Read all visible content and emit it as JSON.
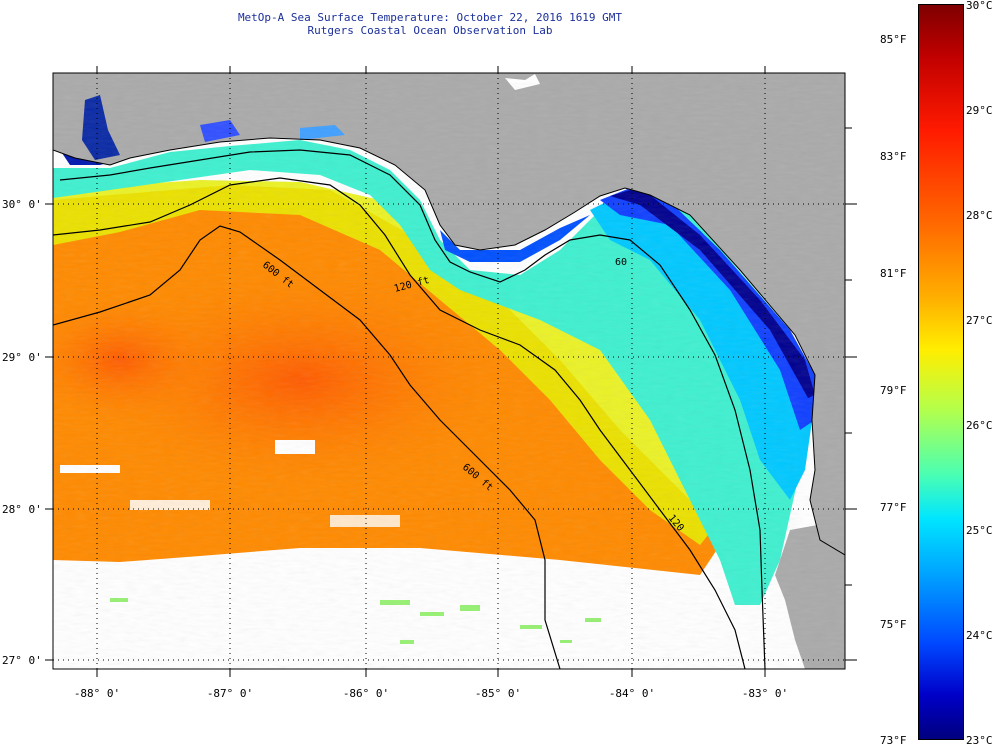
{
  "header": {
    "title": "MetOp-A Sea Surface Temperature:  October 22, 2016 1619 GMT",
    "subtitle": "Rutgers Coastal Ocean Observation Lab"
  },
  "map": {
    "region": "Gulf of Mexico (Florida Panhandle / West Florida Shelf)",
    "lat_labels": [
      "30° 0'",
      "29° 0'",
      "28° 0'",
      "27° 0'"
    ],
    "lon_labels": [
      "-88° 0'",
      "-87° 0'",
      "-86° 0'",
      "-85° 0'",
      "-84° 0'",
      "-83° 0'"
    ],
    "contour_labels": [
      "600 ft",
      "120 ft",
      "60",
      "600 ft",
      "120"
    ],
    "colors": {
      "land": "#aaaaaa",
      "no_data": "#ffffff",
      "warm": "#ff6a00",
      "cool": "#00e5ff",
      "coldest": "#00007f"
    }
  },
  "colorbar": {
    "celsius_labels": [
      "30°C",
      "29°C",
      "28°C",
      "27°C",
      "26°C",
      "25°C",
      "24°C",
      "23°C"
    ],
    "fahrenheit_labels": [
      "85°F",
      "83°F",
      "81°F",
      "79°F",
      "77°F",
      "75°F",
      "73°F"
    ],
    "range_c": [
      23,
      30
    ],
    "range_f": [
      73,
      86
    ]
  }
}
